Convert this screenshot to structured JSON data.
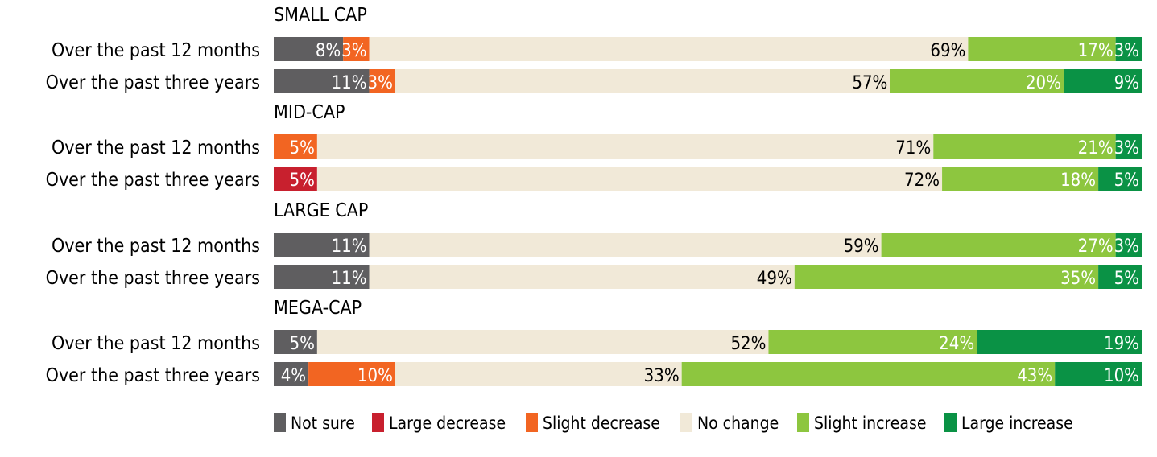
{
  "chart_data": {
    "type": "bar",
    "stacked": true,
    "orientation": "horizontal",
    "legend_position": "bottom",
    "series": [
      {
        "name": "Not sure",
        "color": "#5f5e60",
        "label_color": "#ffffff"
      },
      {
        "name": "Large decrease",
        "color": "#c8202e",
        "label_color": "#ffffff"
      },
      {
        "name": "Slight decrease",
        "color": "#f26522",
        "label_color": "#ffffff"
      },
      {
        "name": "No change",
        "color": "#f1e9d8",
        "label_color": "#000000"
      },
      {
        "name": "Slight increase",
        "color": "#8dc63f",
        "label_color": "#ffffff"
      },
      {
        "name": "Large increase",
        "color": "#0a9245",
        "label_color": "#ffffff"
      }
    ],
    "groups": [
      {
        "title": "SMALL CAP",
        "rows": [
          {
            "label": "Over the past 12 months",
            "values": [
              8,
              0,
              3,
              69,
              17,
              3
            ]
          },
          {
            "label": "Over the past three years",
            "values": [
              11,
              0,
              3,
              57,
              20,
              9
            ]
          }
        ]
      },
      {
        "title": "MID-CAP",
        "rows": [
          {
            "label": "Over the past 12 months",
            "values": [
              0,
              0,
              5,
              71,
              21,
              3
            ]
          },
          {
            "label": "Over the past three years",
            "values": [
              0,
              5,
              0,
              72,
              18,
              5
            ]
          }
        ]
      },
      {
        "title": "LARGE CAP",
        "rows": [
          {
            "label": "Over the past 12 months",
            "values": [
              11,
              0,
              0,
              59,
              27,
              3
            ]
          },
          {
            "label": "Over the past three years",
            "values": [
              11,
              0,
              0,
              49,
              35,
              5
            ]
          }
        ]
      },
      {
        "title": "MEGA-CAP",
        "rows": [
          {
            "label": "Over the past 12 months",
            "values": [
              5,
              0,
              0,
              52,
              24,
              19
            ]
          },
          {
            "label": "Over the past three years",
            "values": [
              4,
              0,
              10,
              33,
              43,
              10
            ]
          }
        ]
      }
    ]
  }
}
